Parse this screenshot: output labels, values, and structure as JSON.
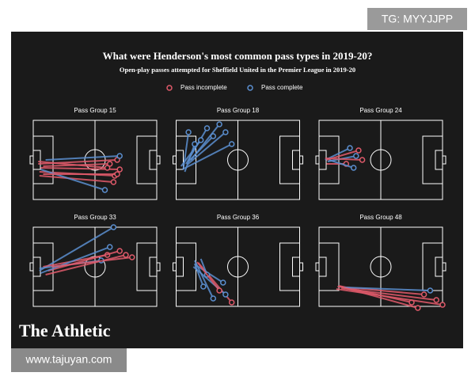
{
  "tag": "TG: MYYJJPP",
  "header": {
    "title": "What were Henderson's most common pass types in 2019-20?",
    "subtitle": "Open-play passes attempted for Sheffield United in the Premier League in 2019-20"
  },
  "legend": [
    "Pass incomplete",
    "Pass complete"
  ],
  "panels": [
    {
      "title": "Pass Group 15"
    },
    {
      "title": "Pass Group 18"
    },
    {
      "title": "Pass Group 24"
    },
    {
      "title": "Pass Group 33"
    },
    {
      "title": "Pass Group 36"
    },
    {
      "title": "Pass Group 48"
    }
  ],
  "brand": "The Athletic",
  "watermark": "www.tajuyan.com"
}
